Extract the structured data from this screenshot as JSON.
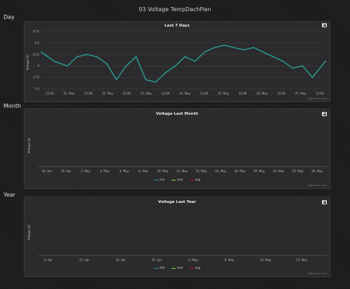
{
  "page": {
    "title": "03 Voltage TempDachFien"
  },
  "sections": [
    {
      "label": "Day"
    },
    {
      "label": "Month"
    },
    {
      "label": "Year"
    }
  ],
  "credit": "Highcharts.com",
  "colors": {
    "series": "#2aa198",
    "min": "#2aa198",
    "max": "#7ed321",
    "avg": "#d0021b"
  },
  "icons": {
    "menu": "hamburger-icon"
  },
  "chart_data": [
    {
      "type": "line",
      "title": "Last 7 Days",
      "ylabel": "Voltage (V)",
      "ylim": [
        3.5,
        4.75
      ],
      "yticks": [
        "3.5",
        "3.75",
        "4",
        "4.25",
        "4.5",
        "4.75"
      ],
      "xticks": [
        "12:00",
        "21. May",
        "12:00",
        "22. May",
        "12:00",
        "23. May",
        "12:00",
        "24. May",
        "12:00",
        "25. May",
        "12:00",
        "26. May",
        "12:00",
        "27. May",
        "12:00"
      ],
      "x_range": [
        "2021-05-20 08:00",
        "2021-05-27 14:00"
      ],
      "series": [
        {
          "x": [
            "2021-05-20 08:00",
            "2021-05-20 16:00",
            "2021-05-21 00:00",
            "2021-05-21 06:00",
            "2021-05-21 12:00",
            "2021-05-21 18:00",
            "2021-05-22 00:00",
            "2021-05-22 06:00",
            "2021-05-22 12:00",
            "2021-05-22 18:00",
            "2021-05-23 00:00",
            "2021-05-23 06:00",
            "2021-05-23 12:00",
            "2021-05-23 18:00",
            "2021-05-24 00:00",
            "2021-05-24 06:00",
            "2021-05-24 12:00",
            "2021-05-24 18:00",
            "2021-05-25 00:00",
            "2021-05-25 06:00",
            "2021-05-25 12:00",
            "2021-05-25 18:00",
            "2021-05-26 00:00",
            "2021-05-26 06:00",
            "2021-05-26 12:00",
            "2021-05-26 18:00",
            "2021-05-27 00:00",
            "2021-05-27 06:00",
            "2021-05-27 14:00"
          ],
          "values": [
            4.3,
            4.1,
            4.0,
            4.2,
            4.25,
            4.2,
            4.05,
            3.7,
            4.0,
            4.2,
            3.7,
            3.65,
            3.85,
            4.0,
            4.2,
            4.1,
            4.3,
            4.4,
            4.45,
            4.4,
            4.35,
            4.4,
            4.3,
            4.2,
            4.1,
            3.95,
            4.0,
            3.75,
            4.1
          ]
        }
      ]
    },
    {
      "type": "line",
      "title": "Voltage Last Month",
      "ylabel": "Voltage (V)",
      "xticks": [
        "28. Apr",
        "30. Apr",
        "2. May",
        "4. May",
        "6. May",
        "8. May",
        "10. May",
        "12. May",
        "14. May",
        "16. May",
        "18. May",
        "20. May",
        "22. May",
        "24. May",
        "26. May"
      ],
      "legend": [
        "min",
        "max",
        "avg"
      ],
      "series": [
        {
          "name": "min",
          "values": []
        },
        {
          "name": "max",
          "values": []
        },
        {
          "name": "avg",
          "values": []
        }
      ]
    },
    {
      "type": "line",
      "title": "Voltage Last Year",
      "ylabel": "Voltage (V)",
      "xticks": [
        "4. Apr",
        "11. Apr",
        "18. Apr",
        "25. Apr",
        "2. May",
        "9. May",
        "16. May",
        "23. May"
      ],
      "legend": [
        "min",
        "max",
        "avg"
      ],
      "series": [
        {
          "name": "min",
          "values": []
        },
        {
          "name": "max",
          "values": []
        },
        {
          "name": "avg",
          "values": []
        }
      ]
    }
  ]
}
